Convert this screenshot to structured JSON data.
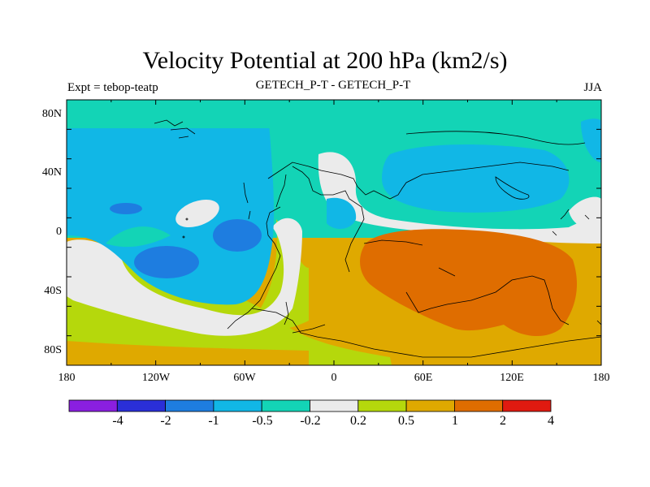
{
  "title": "Velocity Potential at 200 hPa (km2/s)",
  "subtitle_left": "Expt = tebop-teatp",
  "subtitle_center": "GETECH_P-T - GETECH_P-T",
  "subtitle_right": "JJA",
  "lat_ticks": [
    "80N",
    "40N",
    "0",
    "40S",
    "80S"
  ],
  "lon_ticks": [
    "180",
    "120W",
    "60W",
    "0",
    "60E",
    "120E",
    "180"
  ],
  "colorbar": {
    "labels": [
      "-4",
      "-2",
      "-1",
      "-0.5",
      "-0.2",
      "0.2",
      "0.5",
      "1",
      "2",
      "4"
    ],
    "colors": [
      "#8a1fe0",
      "#2a2fd8",
      "#1e7de0",
      "#11b7e6",
      "#13d4b6",
      "#ebebeb",
      "#b5d80c",
      "#dfa900",
      "#df6d00",
      "#e01a10"
    ]
  }
}
